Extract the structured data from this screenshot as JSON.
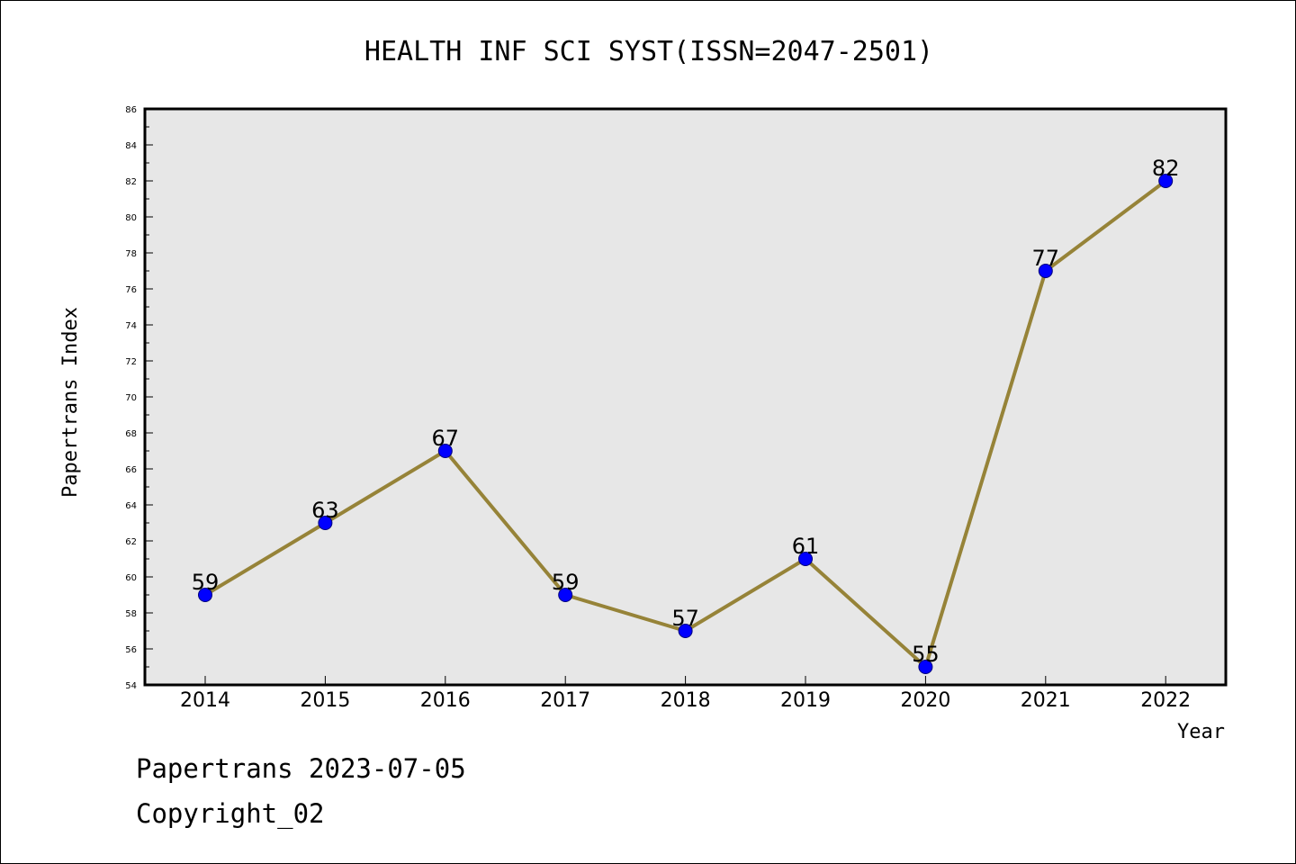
{
  "footer": {
    "line1": "Papertrans 2023-07-05",
    "line2": "Copyright_02"
  },
  "colors": {
    "plot_background": "#e7e7e7",
    "line": "#968338",
    "marker": "#0000ff",
    "frame": "#000000"
  },
  "chart_data": {
    "type": "line",
    "title": "HEALTH INF SCI SYST(ISSN=2047-2501)",
    "xlabel": "Year",
    "ylabel": "Papertrans Index",
    "x": [
      "2014",
      "2015",
      "2016",
      "2017",
      "2018",
      "2019",
      "2020",
      "2021",
      "2022"
    ],
    "series": [
      {
        "values": [
          59,
          63,
          67,
          59,
          57,
          61,
          55,
          77,
          82
        ]
      }
    ],
    "data_labels": [
      "59",
      "63",
      "67",
      "59",
      "57",
      "61",
      "55",
      "77",
      "82"
    ],
    "yticks": [
      "54",
      "56",
      "58",
      "60",
      "62",
      "64",
      "66",
      "68",
      "70",
      "72",
      "74",
      "76",
      "78",
      "80",
      "82",
      "84",
      "86"
    ],
    "ylim": [
      54,
      86
    ],
    "grid": false,
    "legend": "none"
  }
}
